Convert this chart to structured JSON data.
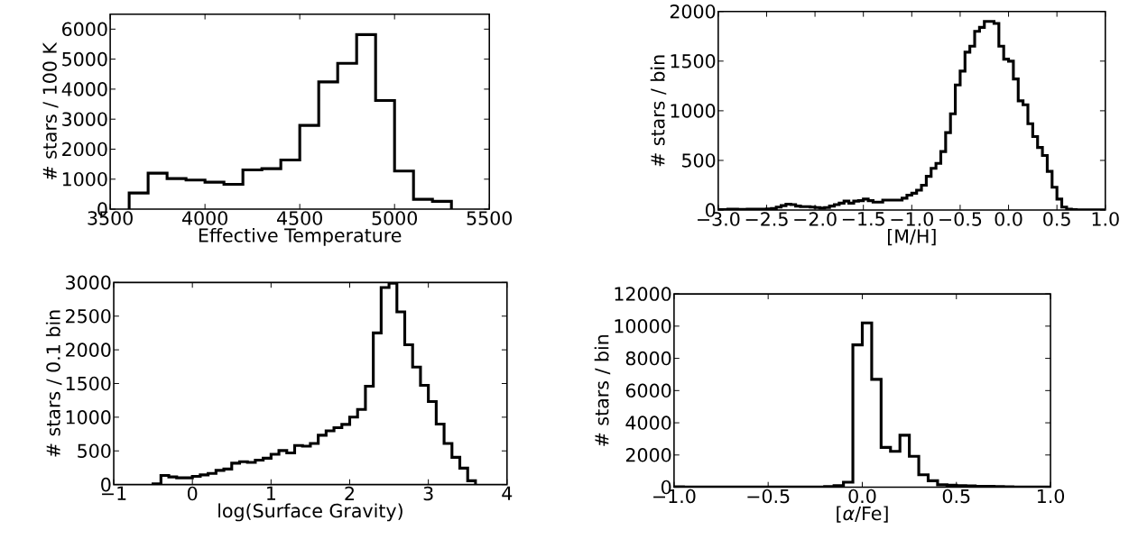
{
  "chart_data": [
    {
      "type": "histogram",
      "xlabel": "Effective Temperature",
      "ylabel": "# stars / 100 K",
      "color": "#000000",
      "bins": [
        3600,
        3700,
        3800,
        3900,
        4000,
        4100,
        4200,
        4300,
        4400,
        4500,
        4600,
        4700,
        4800,
        4900,
        5000,
        5100,
        5200,
        5300
      ],
      "values": [
        540,
        1200,
        1020,
        970,
        900,
        830,
        1310,
        1350,
        1640,
        2790,
        4240,
        4860,
        5820,
        3620,
        1270,
        330,
        260
      ],
      "xlim": [
        3500,
        5500
      ],
      "ylim": [
        0,
        6500
      ],
      "xticks": [
        3500,
        4000,
        4500,
        5000,
        5500
      ],
      "yticks": [
        0,
        1000,
        2000,
        3000,
        4000,
        5000,
        6000
      ]
    },
    {
      "type": "histogram",
      "xlabel": "[M/H]",
      "ylabel": "# stars / bin",
      "color": "#000000",
      "bins": [
        -3,
        -2.95,
        -2.9,
        -2.85,
        -2.8,
        -2.75,
        -2.7,
        -2.65,
        -2.6,
        -2.55,
        -2.5,
        -2.45,
        -2.4,
        -2.35,
        -2.3,
        -2.25,
        -2.2,
        -2.15,
        -2.1,
        -2.05,
        -2,
        -1.95,
        -1.9,
        -1.85,
        -1.8,
        -1.75,
        -1.7,
        -1.65,
        -1.6,
        -1.55,
        -1.5,
        -1.45,
        -1.4,
        -1.35,
        -1.3,
        -1.25,
        -1.2,
        -1.15,
        -1.1,
        -1.05,
        -1,
        -0.95,
        -0.9,
        -0.85,
        -0.8,
        -0.75,
        -0.7,
        -0.65,
        -0.6,
        -0.55,
        -0.5,
        -0.45,
        -0.4,
        -0.35,
        -0.3,
        -0.25,
        -0.2,
        -0.15,
        -0.1,
        -0.05,
        0,
        0.05,
        0.1,
        0.15,
        0.2,
        0.25,
        0.3,
        0.35,
        0.4,
        0.45,
        0.5,
        0.55,
        0.6,
        0.65,
        0.7,
        0.75,
        0.8,
        0.85,
        0.9,
        0.95,
        1
      ],
      "values": [
        5,
        5,
        8,
        8,
        6,
        6,
        8,
        8,
        8,
        10,
        12,
        15,
        30,
        45,
        60,
        55,
        40,
        35,
        35,
        30,
        25,
        20,
        25,
        40,
        55,
        70,
        90,
        70,
        90,
        95,
        110,
        95,
        80,
        80,
        100,
        100,
        100,
        100,
        120,
        150,
        170,
        200,
        250,
        340,
        420,
        470,
        590,
        780,
        970,
        1260,
        1400,
        1590,
        1650,
        1800,
        1840,
        1900,
        1900,
        1880,
        1650,
        1520,
        1500,
        1320,
        1100,
        1060,
        870,
        740,
        630,
        550,
        390,
        230,
        110,
        30,
        10,
        5,
        3,
        2,
        2,
        2,
        2,
        2
      ],
      "xlim": [
        -3,
        1
      ],
      "ylim": [
        0,
        2000
      ],
      "xticks": [
        {
          "value": -3,
          "label": "−3.0"
        },
        {
          "value": -2.5,
          "label": "−2.5"
        },
        {
          "value": -2,
          "label": "−2.0"
        },
        {
          "value": -1.5,
          "label": "−1.5"
        },
        {
          "value": -1,
          "label": "−1.0"
        },
        {
          "value": -0.5,
          "label": "−0.5"
        },
        {
          "value": 0,
          "label": "0.0"
        },
        {
          "value": 0.5,
          "label": "0.5"
        },
        {
          "value": 1,
          "label": "1.0"
        }
      ],
      "yticks": [
        0,
        500,
        1000,
        1500,
        2000
      ]
    },
    {
      "type": "histogram",
      "xlabel": "log(Surface Gravity)",
      "ylabel": "# stars / 0.1 bin",
      "color": "#000000",
      "bins": [
        -0.5,
        -0.4,
        -0.3,
        -0.2,
        -0.1,
        0,
        0.1,
        0.2,
        0.3,
        0.4,
        0.5,
        0.6,
        0.7,
        0.8,
        0.9,
        1,
        1.1,
        1.2,
        1.3,
        1.4,
        1.5,
        1.6,
        1.7,
        1.8,
        1.9,
        2,
        2.1,
        2.2,
        2.3,
        2.4,
        2.5,
        2.6,
        2.7,
        2.8,
        2.9,
        3,
        3.1,
        3.2,
        3.3,
        3.4,
        3.5,
        3.6
      ],
      "values": [
        10,
        135,
        113,
        100,
        100,
        122,
        144,
        165,
        210,
        230,
        318,
        340,
        330,
        362,
        392,
        450,
        505,
        470,
        580,
        570,
        610,
        732,
        798,
        845,
        893,
        1002,
        1115,
        1460,
        2250,
        2925,
        2990,
        2563,
        2075,
        1744,
        1473,
        1233,
        898,
        610,
        405,
        244,
        57
      ],
      "xlim": [
        -1,
        4
      ],
      "ylim": [
        0,
        3000
      ],
      "xticks": [
        {
          "value": -1,
          "label": "−1"
        },
        0,
        1,
        2,
        3,
        4
      ],
      "yticks": [
        0,
        500,
        1000,
        1500,
        2000,
        2500,
        3000
      ]
    },
    {
      "type": "histogram",
      "xlabel": "[*α*/Fe]",
      "ylabel": "# stars / bin",
      "color": "#000000",
      "bins": [
        -1,
        -0.95,
        -0.9,
        -0.85,
        -0.8,
        -0.75,
        -0.7,
        -0.65,
        -0.6,
        -0.55,
        -0.5,
        -0.45,
        -0.4,
        -0.35,
        -0.3,
        -0.25,
        -0.2,
        -0.15,
        -0.1,
        -0.05,
        0,
        0.05,
        0.1,
        0.15,
        0.2,
        0.25,
        0.3,
        0.35,
        0.4,
        0.45,
        0.5,
        0.55,
        0.6,
        0.65,
        0.7,
        0.75,
        0.8,
        0.85,
        0.9,
        0.95,
        1
      ],
      "values": [
        30,
        20,
        10,
        10,
        10,
        10,
        10,
        10,
        10,
        10,
        10,
        10,
        10,
        10,
        10,
        20,
        40,
        100,
        310,
        8840,
        10210,
        6700,
        2470,
        2230,
        3230,
        1920,
        770,
        400,
        150,
        120,
        100,
        80,
        60,
        50,
        40,
        30,
        20,
        15,
        10,
        10
      ],
      "xlim": [
        -1,
        1
      ],
      "ylim": [
        0,
        12000
      ],
      "xticks": [
        {
          "value": -1,
          "label": "−1.0"
        },
        {
          "value": -0.5,
          "label": "−0.5"
        },
        {
          "value": 0,
          "label": "0.0"
        },
        {
          "value": 0.5,
          "label": "0.5"
        },
        {
          "value": 1,
          "label": "1.0"
        }
      ],
      "yticks": [
        0,
        2000,
        4000,
        6000,
        8000,
        10000,
        12000
      ]
    }
  ]
}
